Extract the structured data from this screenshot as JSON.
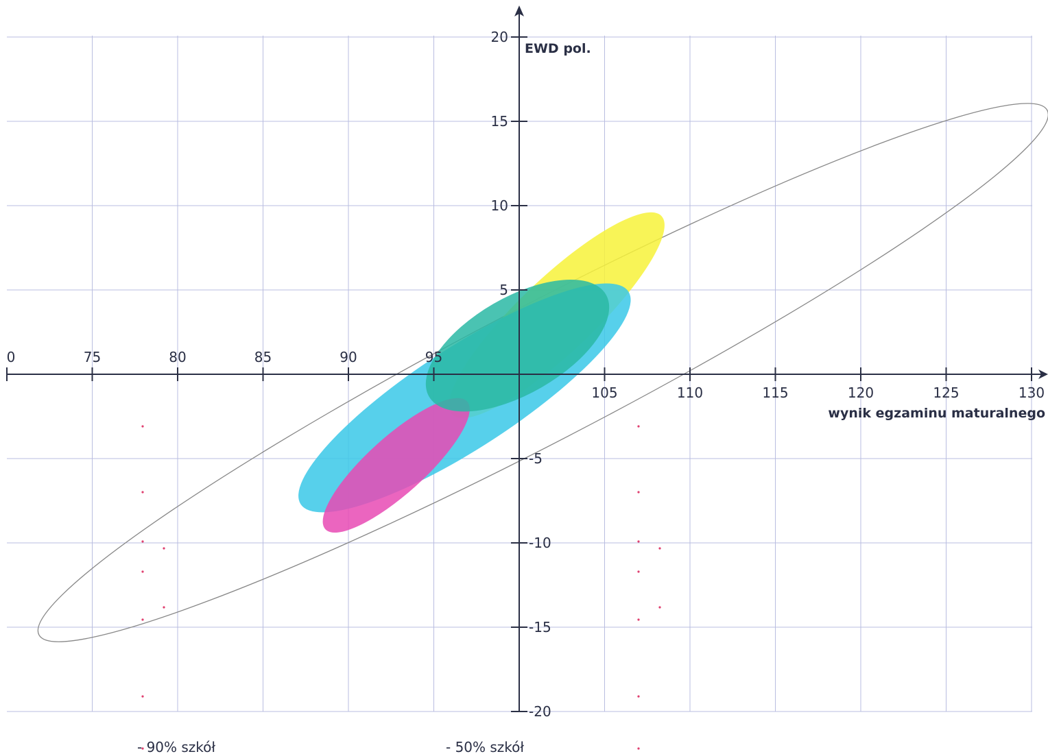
{
  "chart_data": {
    "type": "scatter",
    "title": "",
    "xlabel": "wynik egzaminu maturalnego",
    "ylabel": "EWD pol.",
    "xlim": [
      70,
      130
    ],
    "ylim": [
      -20,
      20
    ],
    "x_ticks": [
      "0",
      "75",
      "80",
      "85",
      "90",
      "95",
      "105",
      "110",
      "115",
      "120",
      "125",
      "130"
    ],
    "y_ticks": [
      "20",
      "15",
      "10",
      "5",
      "-5",
      "-10",
      "-15",
      "-20"
    ],
    "grid": true,
    "legend": [
      "- 90% szkół",
      "- 50% szkół"
    ],
    "ellipses": [
      {
        "kind": "outline",
        "center": [
          101.4,
          0.1
        ],
        "semi_major": 12.8,
        "semi_minor": 1.55,
        "angle_deg": 27.5
      },
      {
        "kind": "filled",
        "color": "#f7f23a",
        "center": [
          102.2,
          3.5
        ],
        "semi_major": 3.25,
        "semi_minor": 0.85,
        "angle_deg": 43.5
      },
      {
        "kind": "filled",
        "color": "#3ac8e8",
        "center": [
          96.8,
          -1.4
        ],
        "semi_major": 4.4,
        "semi_minor": 1.15,
        "angle_deg": 33
      },
      {
        "kind": "filled",
        "color": "#e84ab4",
        "center": [
          92.8,
          -5.4
        ],
        "semi_major": 2.15,
        "semi_minor": 0.65,
        "angle_deg": 42
      },
      {
        "kind": "filled",
        "color": "#2ab8a4",
        "center": [
          99.9,
          1.7
        ],
        "semi_major": 2.3,
        "semi_minor": 1.1,
        "angle_deg": 30
      }
    ]
  }
}
